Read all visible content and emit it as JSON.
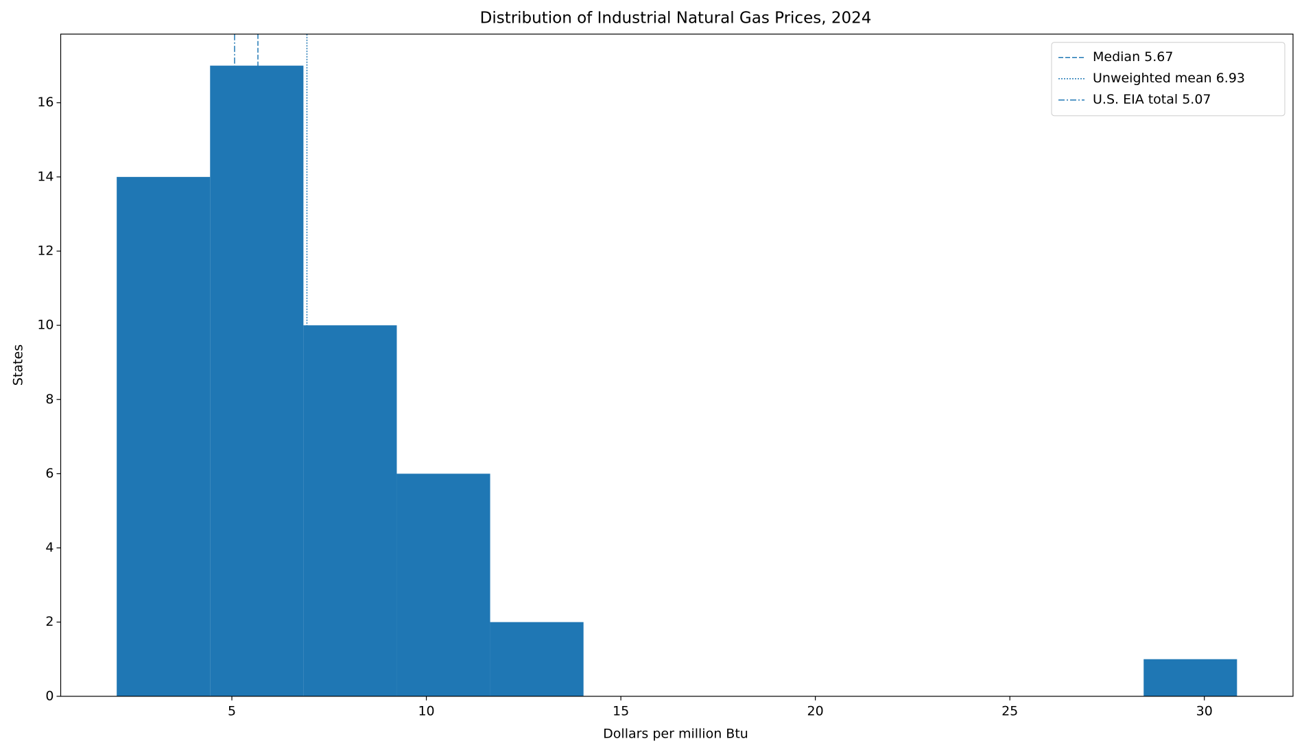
{
  "chart_data": {
    "type": "histogram",
    "title": "Distribution of Industrial Natural Gas Prices, 2024",
    "x_label": "Dollars per million Btu",
    "y_label": "States",
    "bins": [
      2.04,
      4.44,
      6.84,
      9.24,
      11.64,
      14.04,
      16.44,
      18.84,
      21.24,
      23.64,
      26.04,
      28.44,
      30.84
    ],
    "values": [
      14,
      17,
      10,
      6,
      2,
      0,
      0,
      0,
      0,
      0,
      0,
      1
    ],
    "color": "#1f77b4",
    "xlim": [
      0.6,
      32.28
    ],
    "ylim": [
      0,
      17.85
    ],
    "xticks": [
      5,
      10,
      15,
      20,
      25,
      30
    ],
    "yticks": [
      0,
      2,
      4,
      6,
      8,
      10,
      12,
      14,
      16
    ],
    "legend": "upper-right",
    "reference_lines": [
      {
        "name": "Median 5.67",
        "value": 5.67,
        "style": "dashed"
      },
      {
        "name": "Unweighted mean 6.93",
        "value": 6.93,
        "style": "dotted"
      },
      {
        "name": "U.S. EIA total 5.07",
        "value": 5.07,
        "style": "dashdot"
      }
    ]
  }
}
